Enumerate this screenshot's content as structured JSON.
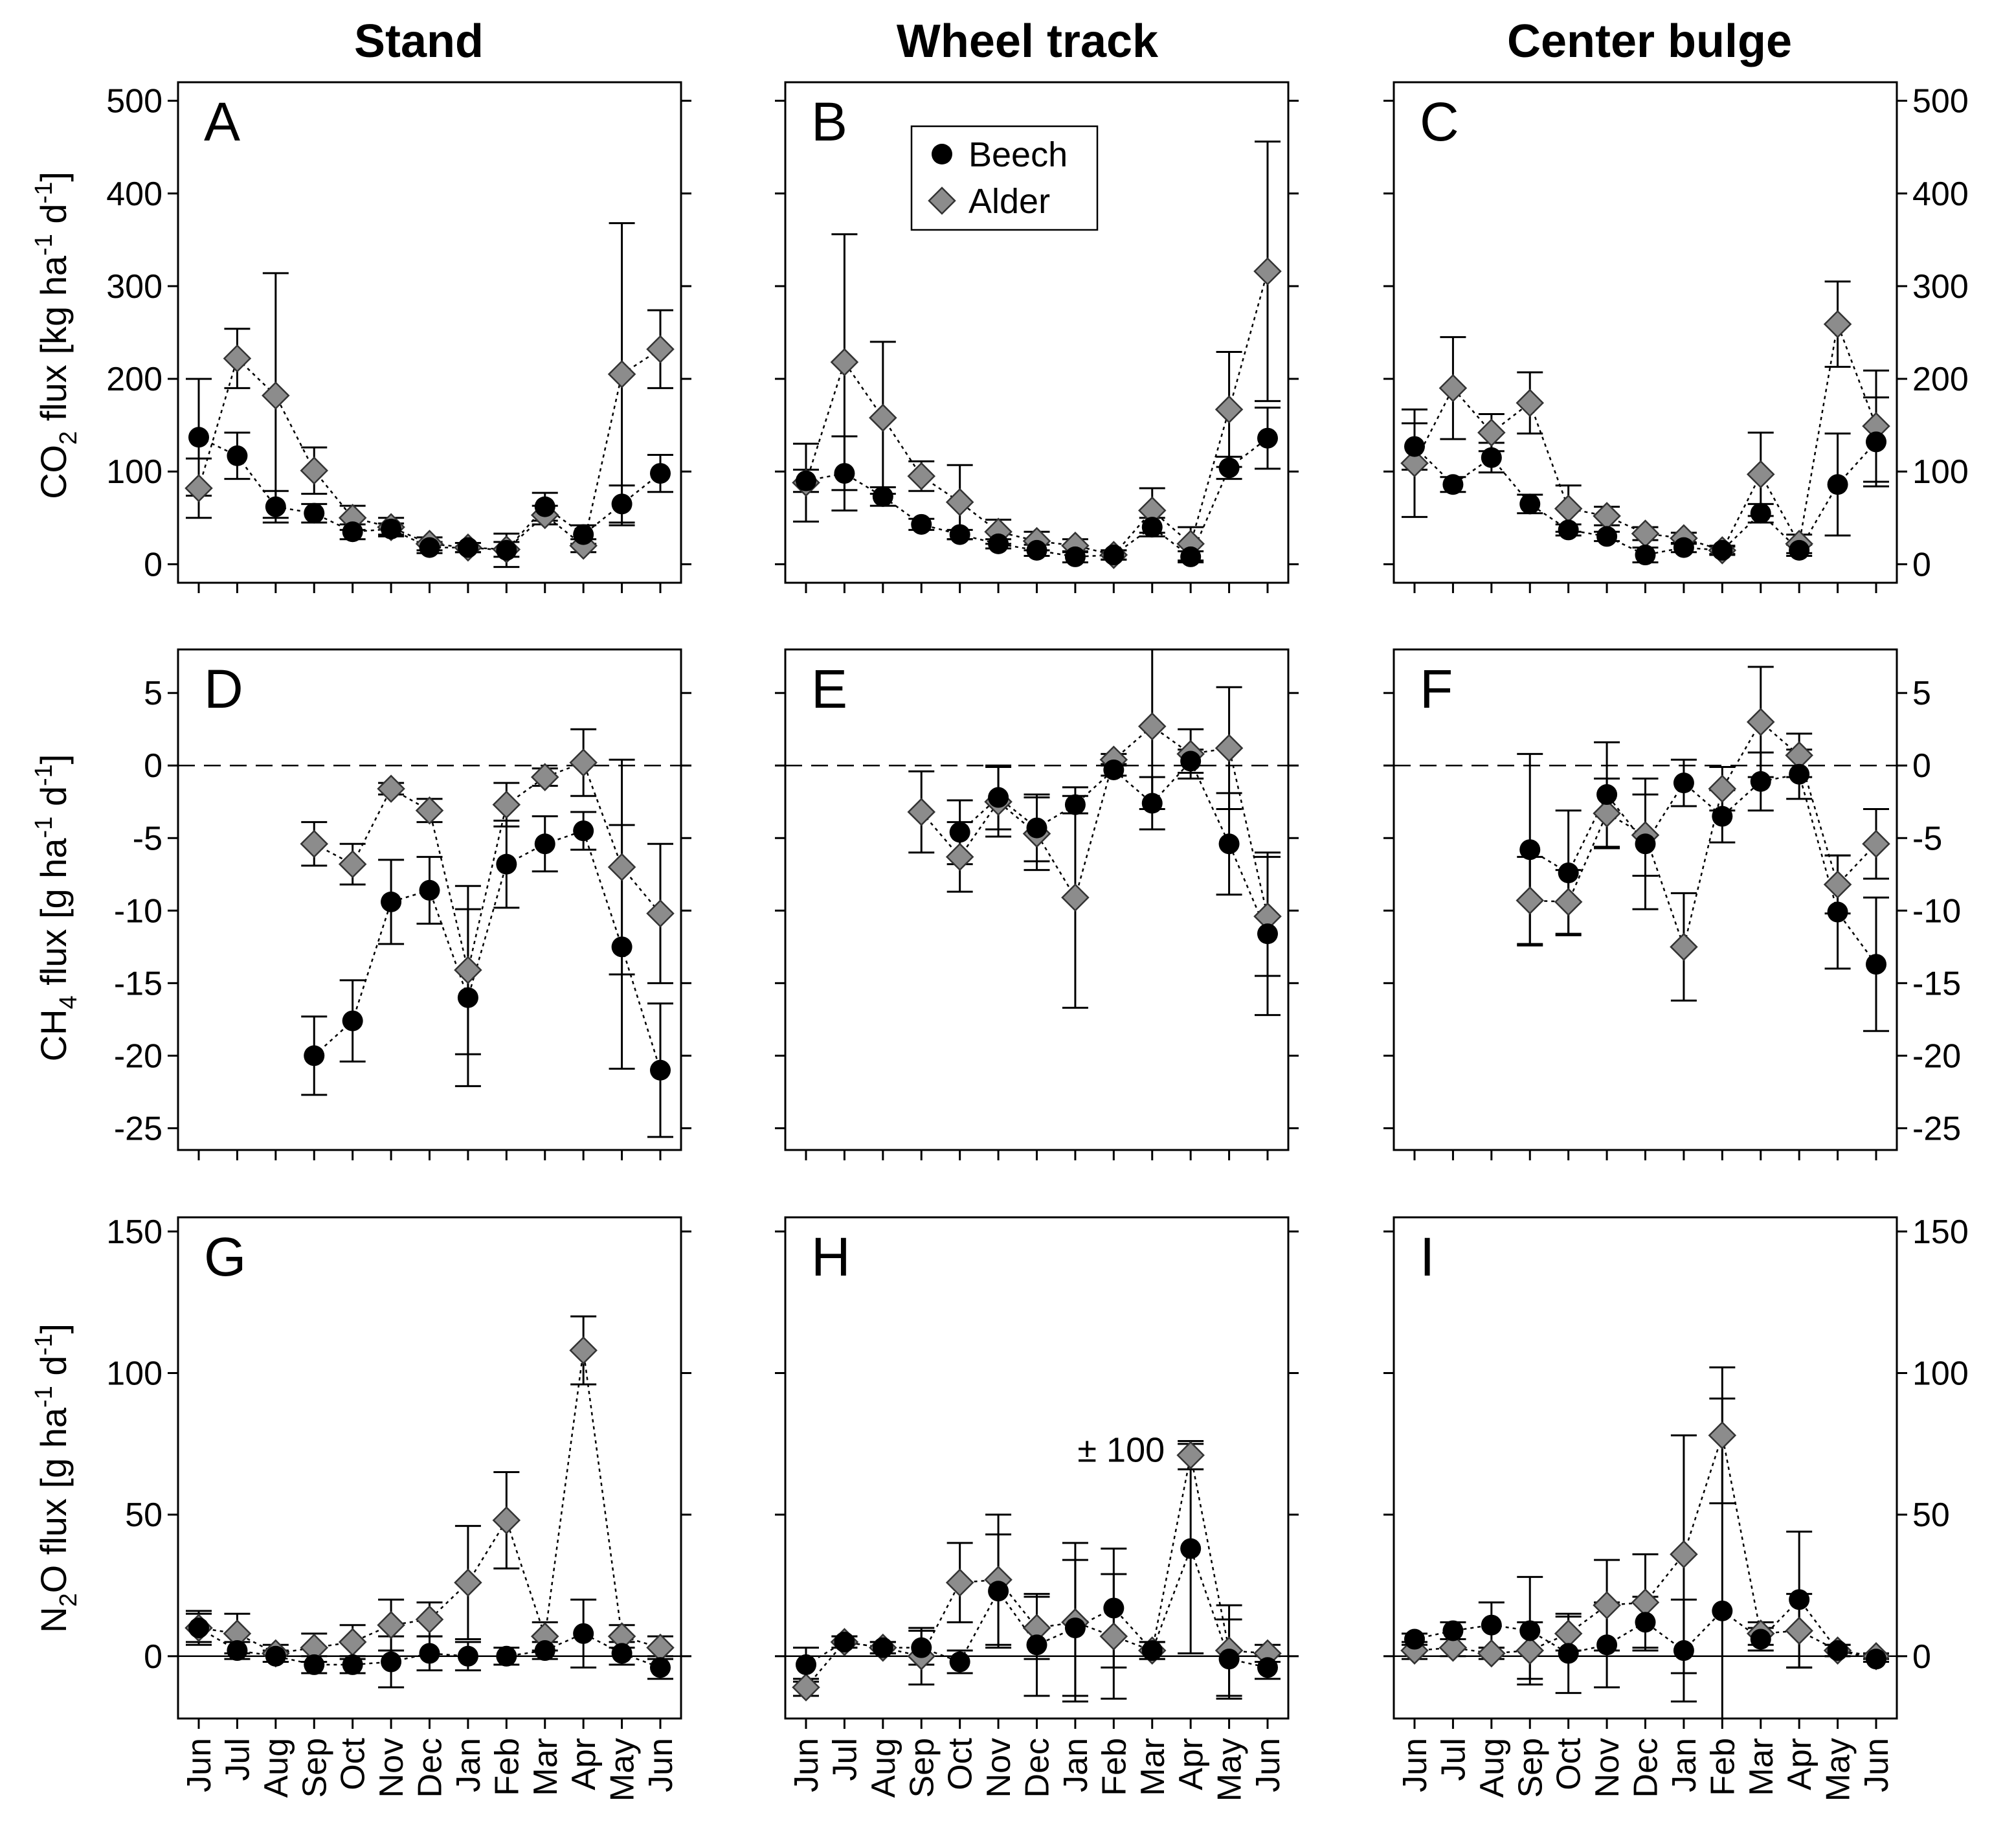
{
  "column_titles": [
    "Stand",
    "Wheel track",
    "Center bulge"
  ],
  "legend": [
    {
      "label": "Beech",
      "marker": "circle",
      "color": "#000000"
    },
    {
      "label": "Alder",
      "marker": "diamond",
      "color": "#8c8c8c"
    }
  ],
  "x_tick_labels": [
    "Jun",
    "Jul",
    "Aug",
    "Sep",
    "Oct",
    "Nov",
    "Dec",
    "Jan",
    "Feb",
    "Mar",
    "Apr",
    "May",
    "Jun"
  ],
  "colors": {
    "beech": "#000000",
    "alder": "#8c8c8c",
    "axis": "#000000"
  },
  "y_axis_labels": [
    {
      "pre": "CO",
      "sub": "2",
      "mid": " flux [kg ha",
      "sup1": "-1",
      "mid2": " d",
      "sup2": "-1",
      "post": "]"
    },
    {
      "pre": "CH",
      "sub": "4",
      "mid": " flux [g ha",
      "sup1": "-1",
      "mid2": " d",
      "sup2": "-1",
      "post": "]"
    },
    {
      "pre": "N",
      "sub": "2",
      "mid": "O flux [g ha",
      "sup1": "-1",
      "mid2": " d",
      "sup2": "-1",
      "post": "]"
    }
  ],
  "annotation": {
    "panel": "H",
    "text": "± 100"
  },
  "chart_data": [
    {
      "panel": "A",
      "type": "scatter",
      "row": 0,
      "col": 0,
      "ylim": [
        -20,
        520
      ],
      "yticks": [
        0,
        100,
        200,
        300,
        400,
        500
      ],
      "series": [
        {
          "name": "Beech",
          "x": [
            0,
            1,
            2,
            3,
            4,
            5,
            6,
            7,
            8,
            9,
            10,
            11,
            12
          ],
          "y": [
            137,
            117,
            62,
            55,
            35,
            38,
            18,
            18,
            15,
            62,
            32,
            65,
            98
          ],
          "err": [
            63,
            25,
            17,
            10,
            8,
            6,
            6,
            5,
            18,
            15,
            10,
            20,
            20
          ]
        },
        {
          "name": "Alder",
          "x": [
            0,
            1,
            2,
            3,
            4,
            5,
            6,
            7,
            8,
            9,
            10,
            11,
            12
          ],
          "y": [
            82,
            222,
            182,
            101,
            50,
            40,
            22,
            18,
            16,
            53,
            20,
            205,
            232
          ],
          "err": [
            32,
            32,
            132,
            25,
            13,
            10,
            7,
            5,
            8,
            10,
            7,
            163,
            42
          ]
        }
      ]
    },
    {
      "panel": "B",
      "type": "scatter",
      "row": 0,
      "col": 1,
      "ylim": [
        -20,
        520
      ],
      "yticks": [
        0,
        100,
        200,
        300,
        400,
        500
      ],
      "series": [
        {
          "name": "Beech",
          "x": [
            0,
            1,
            2,
            3,
            4,
            5,
            6,
            7,
            8,
            9,
            10,
            11,
            12
          ],
          "y": [
            90,
            98,
            73,
            43,
            32,
            22,
            15,
            8,
            10,
            40,
            8,
            104,
            136
          ],
          "err": [
            12,
            40,
            10,
            6,
            5,
            5,
            6,
            6,
            5,
            10,
            6,
            12,
            33
          ]
        },
        {
          "name": "Alder",
          "x": [
            0,
            1,
            2,
            3,
            4,
            5,
            6,
            7,
            8,
            9,
            10,
            11,
            12
          ],
          "y": [
            88,
            218,
            158,
            95,
            67,
            35,
            25,
            20,
            10,
            58,
            22,
            167,
            316
          ],
          "err": [
            42,
            138,
            82,
            16,
            40,
            13,
            10,
            7,
            5,
            24,
            18,
            62,
            140
          ]
        }
      ]
    },
    {
      "panel": "C",
      "type": "scatter",
      "row": 0,
      "col": 2,
      "ylim": [
        -20,
        520
      ],
      "yticks": [
        0,
        100,
        200,
        300,
        400,
        500
      ],
      "series": [
        {
          "name": "Beech",
          "x": [
            0,
            1,
            2,
            3,
            4,
            5,
            6,
            7,
            8,
            9,
            10,
            11,
            12
          ],
          "y": [
            127,
            86,
            115,
            65,
            37,
            30,
            10,
            18,
            15,
            55,
            15,
            86,
            132
          ],
          "err": [
            25,
            8,
            16,
            10,
            6,
            5,
            8,
            5,
            4,
            10,
            6,
            55,
            48
          ]
        },
        {
          "name": "Alder",
          "x": [
            0,
            1,
            2,
            3,
            4,
            5,
            6,
            7,
            8,
            9,
            10,
            11,
            12
          ],
          "y": [
            109,
            190,
            142,
            174,
            60,
            52,
            33,
            28,
            15,
            97,
            22,
            259,
            149
          ],
          "err": [
            58,
            55,
            20,
            33,
            25,
            10,
            7,
            6,
            5,
            45,
            10,
            46,
            60
          ]
        }
      ]
    },
    {
      "panel": "D",
      "type": "scatter",
      "row": 1,
      "col": 0,
      "ylim": [
        -26.5,
        8
      ],
      "yticks": [
        5,
        0,
        -5,
        -10,
        -15,
        -20,
        -25
      ],
      "zero_line": true,
      "series": [
        {
          "name": "Beech",
          "x": [
            3,
            4,
            5,
            6,
            7,
            8,
            9,
            10,
            11,
            12
          ],
          "y": [
            -20,
            -17.6,
            -9.4,
            -8.6,
            -16,
            -6.8,
            -5.4,
            -4.5,
            -12.5,
            -21
          ],
          "err": [
            2.7,
            2.8,
            2.9,
            2.3,
            6.1,
            3,
            1.9,
            1.3,
            8.4,
            4.6
          ]
        },
        {
          "name": "Alder",
          "x": [
            3,
            4,
            5,
            6,
            7,
            8,
            9,
            10,
            11,
            12
          ],
          "y": [
            -5.4,
            -6.8,
            -1.6,
            -3.1,
            -14.1,
            -2.7,
            -0.8,
            0.2,
            -7,
            -10.2
          ],
          "err": [
            1.5,
            1.4,
            0.4,
            0.8,
            5.8,
            1.5,
            0.6,
            2.3,
            7.4,
            4.8
          ]
        }
      ]
    },
    {
      "panel": "E",
      "type": "scatter",
      "row": 1,
      "col": 1,
      "ylim": [
        -26.5,
        8
      ],
      "yticks": [
        5,
        0,
        -5,
        -10,
        -15,
        -20,
        -25
      ],
      "zero_line": true,
      "series": [
        {
          "name": "Beech",
          "x": [
            4,
            5,
            6,
            7,
            8,
            9,
            10,
            11,
            12
          ],
          "y": [
            -4.6,
            -2.2,
            -4.3,
            -2.7,
            -0.3,
            -2.6,
            0.3,
            -5.4,
            -11.6
          ],
          "err": [
            2.2,
            2.2,
            2.3,
            0.6,
            0.4,
            1.8,
            0.8,
            3.5,
            5.6
          ]
        },
        {
          "name": "Alder",
          "x": [
            3,
            4,
            5,
            6,
            7,
            8,
            9,
            10,
            11,
            12
          ],
          "y": [
            -3.2,
            -6.3,
            -2.5,
            -4.7,
            -9.1,
            0.4,
            2.7,
            0.8,
            1.2,
            -10.4
          ],
          "err": [
            2.8,
            2.4,
            2.4,
            2.5,
            7.6,
            0.4,
            5.7,
            1.7,
            4.2,
            4.1
          ]
        }
      ]
    },
    {
      "panel": "F",
      "type": "scatter",
      "row": 1,
      "col": 2,
      "ylim": [
        -26.5,
        8
      ],
      "yticks": [
        5,
        0,
        -5,
        -10,
        -15,
        -20,
        -25
      ],
      "zero_line": true,
      "series": [
        {
          "name": "Beech",
          "x": [
            3,
            4,
            5,
            6,
            7,
            8,
            9,
            10,
            11,
            12
          ],
          "y": [
            -5.8,
            -7.4,
            -2,
            -5.4,
            -1.2,
            -3.5,
            -1.1,
            -0.6,
            -10.1,
            -13.7
          ],
          "err": [
            6.6,
            4.3,
            3.6,
            4.5,
            1.6,
            1.8,
            2,
            1.7,
            3.9,
            4.6
          ]
        },
        {
          "name": "Alder",
          "x": [
            3,
            4,
            5,
            6,
            7,
            8,
            9,
            10,
            11,
            12
          ],
          "y": [
            -9.3,
            -9.4,
            -3.3,
            -4.8,
            -12.5,
            -1.6,
            3,
            0.7,
            -8.2,
            -5.4
          ],
          "err": [
            3,
            2.2,
            2.4,
            2.8,
            3.7,
            1.5,
            3.8,
            1.5,
            2,
            2.4
          ]
        }
      ]
    },
    {
      "panel": "G",
      "type": "scatter",
      "row": 2,
      "col": 0,
      "ylim": [
        -22,
        155
      ],
      "yticks": [
        0,
        50,
        100,
        150
      ],
      "zero_line": true,
      "series": [
        {
          "name": "Beech",
          "x": [
            0,
            1,
            2,
            3,
            4,
            5,
            6,
            7,
            8,
            9,
            10,
            11,
            12
          ],
          "y": [
            10,
            2,
            0,
            -3,
            -3,
            -2,
            1,
            0,
            0,
            2,
            8,
            1,
            -4
          ],
          "err": [
            5,
            3,
            2,
            3,
            3,
            9,
            6,
            5,
            3,
            3,
            12,
            4,
            4
          ]
        },
        {
          "name": "Alder",
          "x": [
            0,
            1,
            2,
            3,
            4,
            5,
            6,
            7,
            8,
            9,
            10,
            11,
            12
          ],
          "y": [
            10,
            8,
            1,
            3,
            5,
            11,
            13,
            26,
            48,
            7,
            108,
            7,
            3
          ],
          "err": [
            6,
            7,
            3,
            5,
            6,
            9,
            6,
            20,
            17,
            5,
            12,
            4,
            4
          ]
        }
      ]
    },
    {
      "panel": "H",
      "type": "scatter",
      "row": 2,
      "col": 1,
      "ylim": [
        -22,
        155
      ],
      "yticks": [
        0,
        50,
        100,
        150
      ],
      "zero_line": true,
      "series": [
        {
          "name": "Beech",
          "x": [
            0,
            1,
            2,
            3,
            4,
            5,
            6,
            7,
            8,
            9,
            10,
            11,
            12
          ],
          "y": [
            -3,
            5,
            3,
            3,
            -2,
            23,
            4,
            10,
            17,
            2,
            38,
            -1,
            -4
          ],
          "err": [
            6,
            2,
            2,
            6,
            4,
            20,
            18,
            24,
            21,
            3,
            37,
            14,
            4
          ]
        },
        {
          "name": "Alder",
          "x": [
            0,
            1,
            2,
            3,
            4,
            5,
            6,
            7,
            8,
            9,
            10,
            11,
            12
          ],
          "y": [
            -11,
            5,
            3,
            0,
            26,
            27,
            10,
            12,
            7,
            2,
            71,
            2,
            1
          ],
          "err": [
            3,
            2,
            2,
            10,
            14,
            23,
            11,
            28,
            22,
            3,
            5,
            16,
            3
          ]
        }
      ]
    },
    {
      "panel": "I",
      "type": "scatter",
      "row": 2,
      "col": 2,
      "ylim": [
        -22,
        155
      ],
      "yticks": [
        0,
        50,
        100,
        150
      ],
      "zero_line": true,
      "series": [
        {
          "name": "Beech",
          "x": [
            0,
            1,
            2,
            3,
            4,
            5,
            6,
            7,
            8,
            9,
            10,
            11,
            12
          ],
          "y": [
            6,
            9,
            11,
            9,
            1,
            4,
            12,
            2,
            16,
            6,
            20,
            2,
            -1
          ],
          "err": [
            2,
            3,
            8,
            19,
            14,
            15,
            9,
            18,
            75,
            4,
            24,
            2,
            1
          ]
        },
        {
          "name": "Alder",
          "x": [
            0,
            1,
            2,
            3,
            4,
            5,
            6,
            7,
            8,
            9,
            10,
            11,
            12
          ],
          "y": [
            2,
            3,
            1,
            2,
            8,
            18,
            19,
            36,
            78,
            8,
            9,
            2,
            0
          ],
          "err": [
            3,
            3,
            2,
            10,
            6,
            16,
            17,
            42,
            24,
            4,
            13,
            2,
            1
          ]
        }
      ]
    }
  ]
}
